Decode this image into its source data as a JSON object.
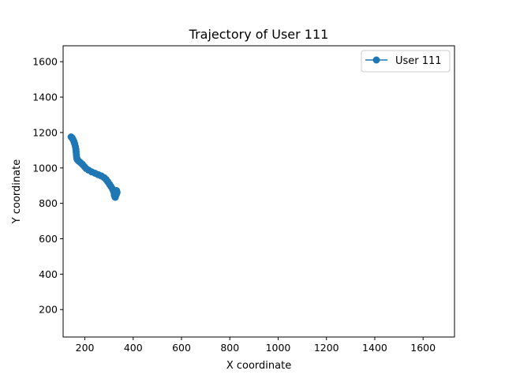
{
  "chart_data": {
    "type": "line",
    "title": "Trajectory of User 111",
    "xlabel": "X coordinate",
    "ylabel": "Y coordinate",
    "xlim": [
      110,
      1730
    ],
    "ylim": [
      45,
      1690
    ],
    "xticks": [
      200,
      400,
      600,
      800,
      1000,
      1200,
      1400,
      1600
    ],
    "yticks": [
      200,
      400,
      600,
      800,
      1000,
      1200,
      1400,
      1600
    ],
    "grid": false,
    "legend_position": "top-right",
    "colors": {
      "series": "#1f77b4",
      "axes": "#000000",
      "background": "#ffffff"
    },
    "series": [
      {
        "name": "User 111",
        "marker": "circle",
        "x": [
          143,
          147,
          151,
          155,
          158,
          161,
          163,
          164,
          165,
          166,
          167,
          170,
          175,
          182,
          190,
          198,
          205,
          215,
          228,
          242,
          255,
          268,
          280,
          288,
          295,
          302,
          308,
          314,
          318,
          321,
          323,
          324,
          325,
          326,
          330,
          333,
          331,
          327,
          324,
          322
        ],
        "y": [
          1175,
          1170,
          1160,
          1148,
          1135,
          1120,
          1105,
          1090,
          1075,
          1062,
          1052,
          1045,
          1038,
          1030,
          1020,
          1008,
          997,
          988,
          978,
          970,
          962,
          955,
          945,
          935,
          922,
          908,
          895,
          882,
          870,
          860,
          850,
          842,
          836,
          834,
          850,
          862,
          872,
          866,
          855,
          845
        ]
      }
    ]
  }
}
